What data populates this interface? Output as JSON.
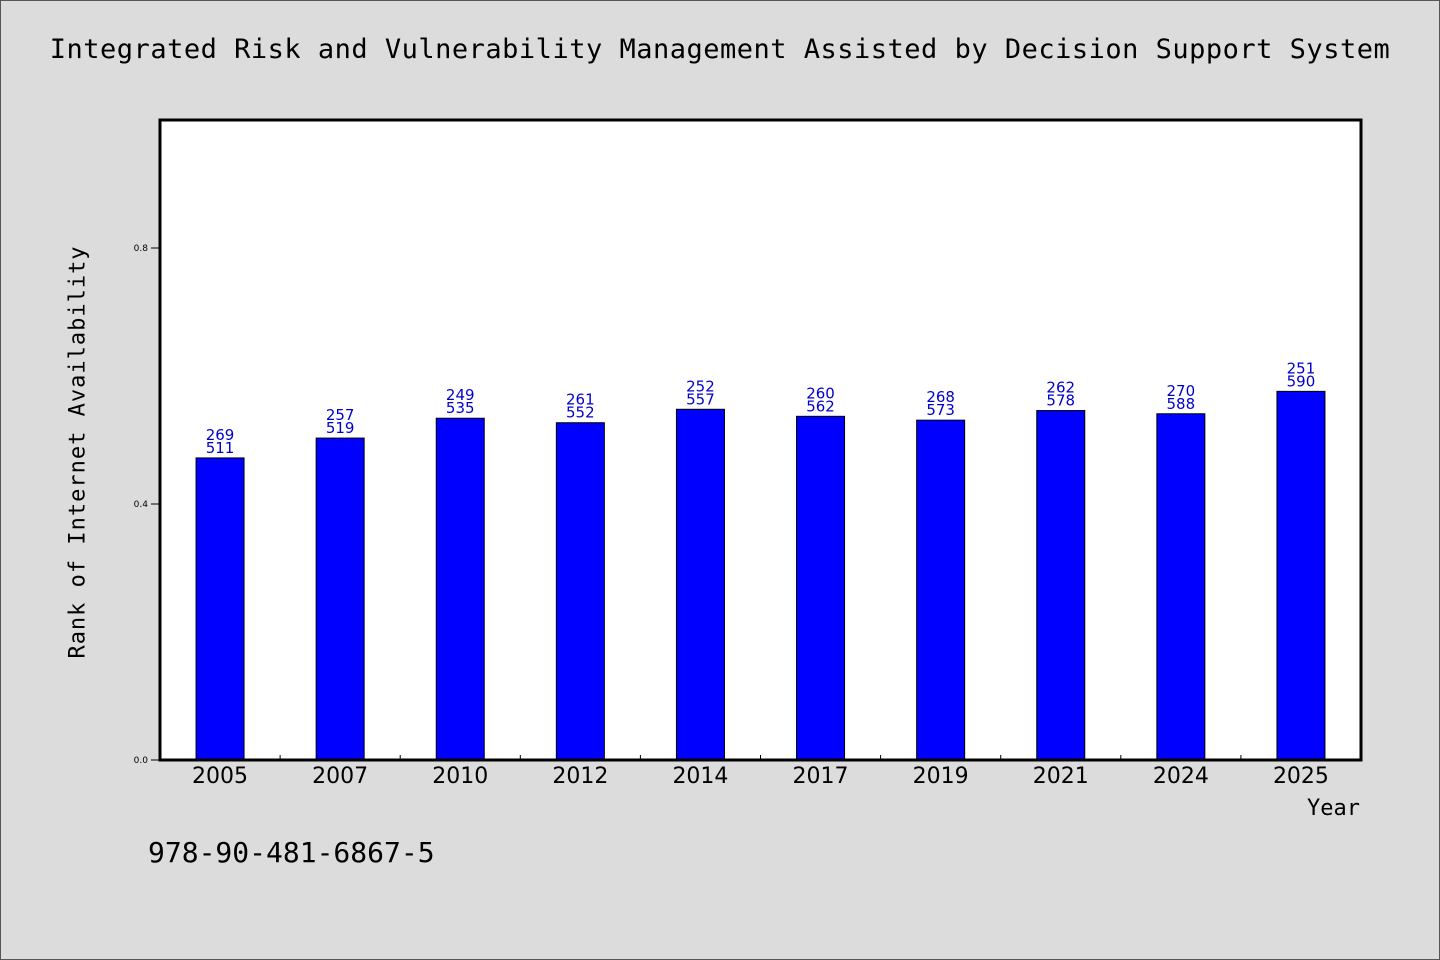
{
  "chart_data": {
    "type": "bar",
    "title": "Integrated Risk and Vulnerability Management Assisted by Decision Support System",
    "xlabel": "Year",
    "ylabel": "Rank of Internet Availability",
    "ylim": [
      0,
      1.0
    ],
    "yticks": [
      "0.0",
      "0.4",
      "0.8"
    ],
    "categories": [
      "2005",
      "2007",
      "2010",
      "2012",
      "2014",
      "2017",
      "2019",
      "2021",
      "2024",
      "2025"
    ],
    "values": [
      0.472,
      0.503,
      0.534,
      0.527,
      0.548,
      0.537,
      0.531,
      0.546,
      0.541,
      0.576
    ],
    "labels_top": [
      "269",
      "257",
      "249",
      "261",
      "252",
      "260",
      "268",
      "262",
      "270",
      "251"
    ],
    "labels_bottom": [
      "511",
      "519",
      "535",
      "552",
      "557",
      "562",
      "573",
      "578",
      "588",
      "590"
    ],
    "bar_color": "#0000ff",
    "label_color": "#0000cc",
    "grid": false
  },
  "footer_code": "978-90-481-6867-5"
}
